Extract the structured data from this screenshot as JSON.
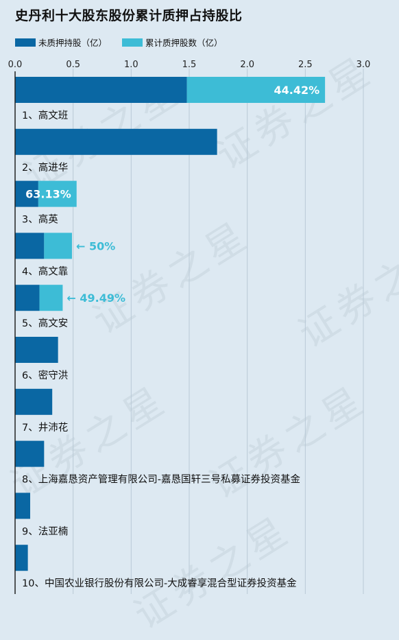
{
  "title": "史丹利十大股东股份累计质押占持股比",
  "legend": {
    "unpledged": "未质押持股（亿）",
    "pledged": "累计质押股数（亿）"
  },
  "colors": {
    "unpledged": "#0a67a3",
    "pledged": "#3dbcd6",
    "background": "#dde9f2"
  },
  "watermark": "证券之星",
  "chart_data": {
    "type": "bar",
    "orientation": "horizontal",
    "stacked": true,
    "x_ticks": [
      "0.0",
      "0.5",
      "1.0",
      "1.5",
      "2.0",
      "2.5",
      "3.0"
    ],
    "xlim": [
      0,
      3.0
    ],
    "grid": true,
    "legend_position": "top-left",
    "categories": [
      "1、高文班",
      "2、高进华",
      "3、高英",
      "4、高文靠",
      "5、高文安",
      "6、密守洪",
      "7、井沛花",
      "8、上海嘉恳资产管理有限公司-嘉恳国轩三号私募证券投资基金",
      "9、法亚楠",
      "10、中国农业银行股份有限公司-大成睿享混合型证券投资基金"
    ],
    "series": [
      {
        "name": "未质押持股（亿）",
        "values": [
          1.48,
          1.74,
          0.2,
          0.25,
          0.21,
          0.37,
          0.32,
          0.25,
          0.13,
          0.11
        ]
      },
      {
        "name": "累计质押股数（亿）",
        "values": [
          1.19,
          0.0,
          0.33,
          0.24,
          0.2,
          0.0,
          0.0,
          0.0,
          0.0,
          0.0
        ]
      }
    ],
    "annotations": [
      {
        "index": 0,
        "text": "44.42%",
        "style": "inside"
      },
      {
        "index": 2,
        "text": "63.13%",
        "style": "inside"
      },
      {
        "index": 3,
        "text": "50%",
        "style": "arrow"
      },
      {
        "index": 4,
        "text": "49.49%",
        "style": "arrow"
      }
    ]
  }
}
